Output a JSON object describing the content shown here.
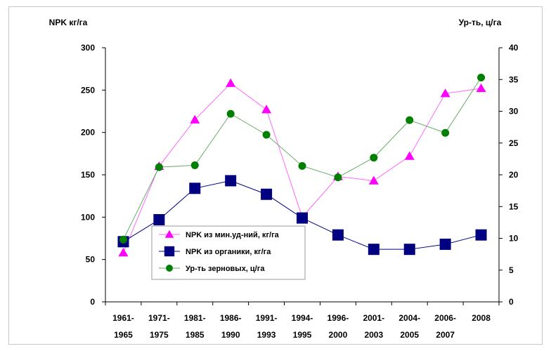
{
  "chart_data": {
    "type": "line",
    "y_left_label": "NPK кг/га",
    "y_right_label": "Ур-ть, ц/га",
    "categories": [
      [
        "1961-",
        "1965"
      ],
      [
        "1971-",
        "1975"
      ],
      [
        "1981-",
        "1985"
      ],
      [
        "1986-",
        "1990"
      ],
      [
        "1991-",
        "1993"
      ],
      [
        "1994-",
        "1995"
      ],
      [
        "1996-",
        "2000"
      ],
      [
        "2001-",
        "2003"
      ],
      [
        "2004-",
        "2005"
      ],
      [
        "2006-",
        "2007"
      ],
      [
        "2008",
        ""
      ]
    ],
    "ylim_left": [
      0,
      300
    ],
    "yticks_left": [
      0,
      50,
      100,
      150,
      200,
      250,
      300
    ],
    "ylim_right": [
      0,
      40
    ],
    "yticks_right": [
      0,
      5,
      10,
      15,
      20,
      25,
      30,
      35,
      40
    ],
    "grid": false,
    "legend_position": "lower-left inside plot",
    "series": [
      {
        "name": "NPK из мин.уд-ний, кг/га",
        "axis": "left",
        "marker": "triangle",
        "color": "#ff00ff",
        "line_color": "#ff66ff",
        "values": [
          58,
          160,
          215,
          258,
          227,
          100,
          148,
          143,
          172,
          246,
          252
        ]
      },
      {
        "name": "NPK из органики, кг/га",
        "axis": "left",
        "marker": "square",
        "color": "#000080",
        "line_color": "#000080",
        "values": [
          71,
          97,
          134,
          143,
          127,
          99,
          79,
          62,
          62,
          68,
          79
        ]
      },
      {
        "name": "Ур-ть зерновых, ц/га",
        "axis": "right",
        "marker": "circle",
        "color": "#008000",
        "line_color": "#66aa66",
        "values": [
          9.8,
          21.2,
          21.5,
          29.6,
          26.3,
          21.4,
          19.6,
          22.7,
          28.6,
          26.6,
          35.3
        ]
      }
    ]
  }
}
